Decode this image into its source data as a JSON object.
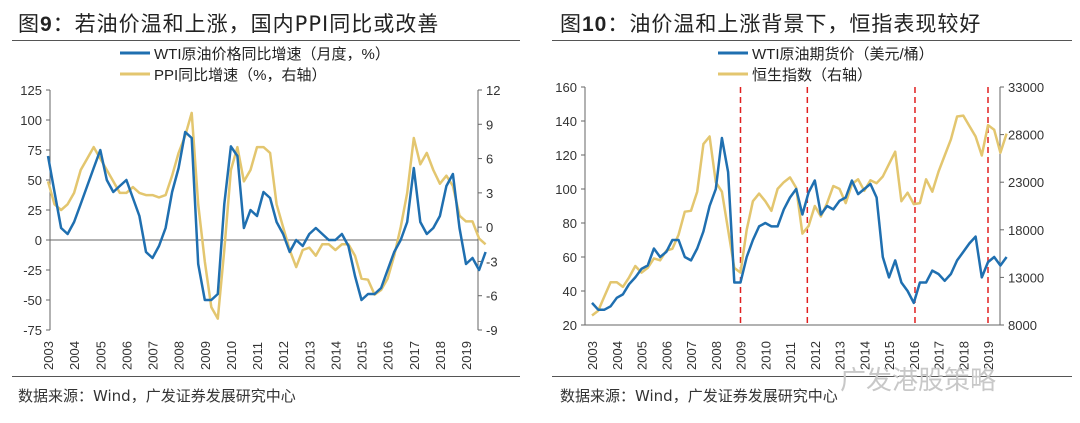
{
  "chart_data": [
    {
      "type": "line",
      "title": "图9：若油价温和上涨，国内PPI同比或改善",
      "legend": [
        "WTI原油价格同比增速（月度，%）",
        "PPI同比增速（%，右轴）"
      ],
      "x_start": 2003,
      "x_step": 0.25,
      "ylim": [
        -75,
        125
      ],
      "yticks": [
        -75,
        -50,
        -25,
        0,
        25,
        50,
        75,
        100,
        125
      ],
      "y2lim": [
        -9,
        12
      ],
      "y2ticks": [
        -9,
        -6,
        -3,
        0,
        3,
        6,
        9,
        12
      ],
      "xticks": [
        "2003",
        "2004",
        "2005",
        "2006",
        "2007",
        "2008",
        "2009",
        "2010",
        "2011",
        "2012",
        "2013",
        "2014",
        "2015",
        "2016",
        "2017",
        "2018",
        "2019"
      ],
      "series": [
        {
          "name": "WTI原油价格同比增速（月度，%）",
          "axis": "left",
          "color": "#1f6fb0",
          "values": [
            70,
            40,
            10,
            5,
            15,
            30,
            45,
            60,
            75,
            50,
            40,
            45,
            50,
            35,
            20,
            -10,
            -15,
            -5,
            10,
            40,
            60,
            90,
            85,
            -20,
            -50,
            -50,
            -45,
            30,
            78,
            70,
            10,
            25,
            20,
            40,
            35,
            15,
            5,
            -10,
            0,
            -5,
            5,
            10,
            5,
            0,
            0,
            5,
            -5,
            -30,
            -50,
            -45,
            -45,
            -40,
            -25,
            -10,
            0,
            15,
            60,
            15,
            5,
            10,
            20,
            45,
            55,
            10,
            -20,
            -15,
            -25,
            -10
          ]
        },
        {
          "name": "PPI同比增速（%，右轴）",
          "axis": "right",
          "color": "#e3c66f",
          "values": [
            4,
            2,
            1.5,
            2,
            3,
            5,
            6,
            7,
            6,
            5,
            4,
            3,
            3,
            3.5,
            3,
            2.8,
            2.8,
            2.6,
            2.8,
            4.5,
            6.5,
            8,
            10,
            2,
            -3,
            -7,
            -8,
            -2,
            5,
            7,
            4,
            5,
            7,
            7,
            6.5,
            2,
            0,
            -2,
            -3.5,
            -2,
            -1.8,
            -2.5,
            -1.5,
            -1.5,
            -2,
            -1.5,
            -1.5,
            -2.5,
            -4.5,
            -4.6,
            -5.9,
            -5.5,
            -4.5,
            -2.5,
            0,
            3,
            7.8,
            5.5,
            6.5,
            5,
            3.8,
            4.5,
            3.6,
            1,
            0.5,
            0.5,
            -1,
            -1.5
          ]
        }
      ]
    },
    {
      "type": "line",
      "title": "图10：油价温和上涨背景下，恒指表现较好",
      "legend": [
        "WTI原油期货价（美元/桶）",
        "恒生指数（右轴）"
      ],
      "x_start": 2003,
      "x_step": 0.25,
      "ylim": [
        20,
        160
      ],
      "yticks": [
        20,
        40,
        60,
        80,
        100,
        120,
        140,
        160
      ],
      "y2lim": [
        8000,
        33000
      ],
      "y2ticks": [
        8000,
        13000,
        18000,
        23000,
        28000,
        33000
      ],
      "xticks": [
        "2003",
        "2004",
        "2005",
        "2006",
        "2007",
        "2008",
        "2009",
        "2010",
        "2011",
        "2012",
        "2013",
        "2014",
        "2015",
        "2016",
        "2017",
        "2018",
        "2019"
      ],
      "markers": [
        2009.0,
        2011.7,
        2016.05,
        2019.0
      ],
      "series": [
        {
          "name": "WTI原油期货价（美元/桶）",
          "axis": "left",
          "color": "#1f6fb0",
          "values": [
            33,
            29,
            29,
            31,
            36,
            38,
            44,
            48,
            53,
            55,
            65,
            60,
            63,
            70,
            70,
            60,
            58,
            65,
            75,
            90,
            100,
            130,
            110,
            45,
            45,
            60,
            70,
            78,
            80,
            78,
            78,
            88,
            95,
            100,
            85,
            98,
            105,
            85,
            90,
            88,
            93,
            95,
            105,
            97,
            100,
            103,
            95,
            60,
            48,
            58,
            45,
            40,
            33,
            45,
            45,
            52,
            50,
            46,
            50,
            58,
            63,
            68,
            72,
            48,
            57,
            60,
            55,
            60
          ]
        },
        {
          "name": "恒生指数（右轴）",
          "axis": "right",
          "color": "#e3c66f",
          "values": [
            9000,
            9500,
            11000,
            12500,
            12500,
            12000,
            13000,
            14200,
            13500,
            14000,
            15000,
            14800,
            15800,
            16000,
            17500,
            19900,
            20000,
            22000,
            27000,
            27800,
            23000,
            22000,
            18000,
            14000,
            13500,
            18000,
            21000,
            21800,
            21000,
            20000,
            22300,
            23000,
            23500,
            22400,
            17600,
            18400,
            20500,
            19400,
            20800,
            22600,
            22300,
            20800,
            22800,
            23300,
            22100,
            23200,
            22900,
            23600,
            24900,
            26200,
            21000,
            21900,
            20700,
            20800,
            23300,
            22000,
            24100,
            25800,
            27500,
            29900,
            30000,
            28900,
            27800,
            25800,
            29000,
            28500,
            26100,
            28100
          ]
        }
      ]
    }
  ],
  "fig9": {
    "title_prefix": "图",
    "title_num": "9",
    "title_rest": "：若油价温和上涨，国内PPI同比或改善",
    "source": "数据来源：Wind，广发证券发展研究中心"
  },
  "fig10": {
    "title_prefix": "图",
    "title_num": "10",
    "title_rest": "：油价温和上涨背景下，恒指表现较好",
    "source": "数据来源：Wind，广发证券发展研究中心"
  },
  "watermark": "广发港股策略"
}
